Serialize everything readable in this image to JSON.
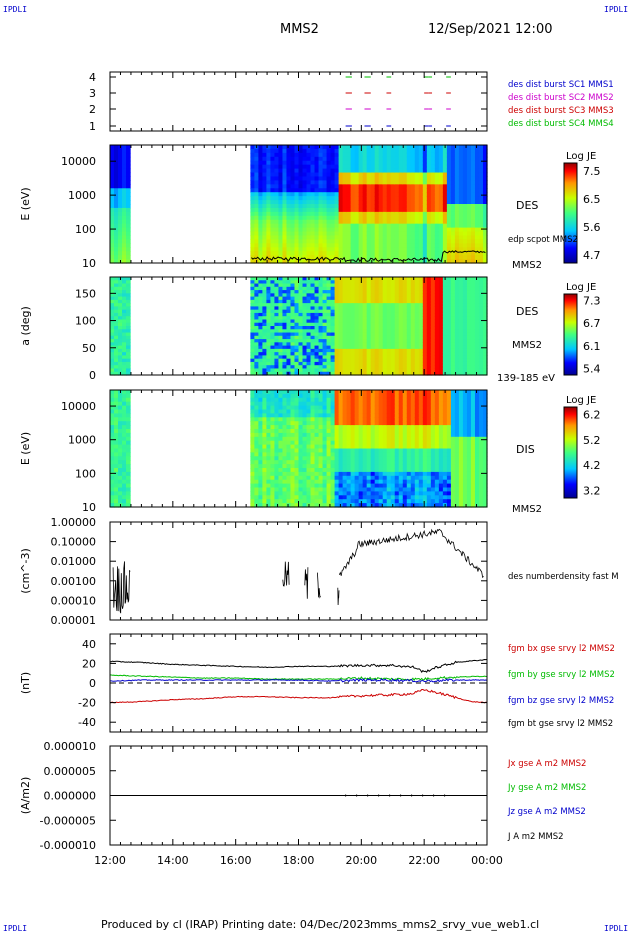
{
  "header": {
    "corner_label": "IPDLI",
    "spacecraft": "MMS2",
    "datetime": "12/Sep/2021 12:00"
  },
  "footer": {
    "produced_by": "Produced by cl (IRAP)",
    "printing_date": "Printing date: 04/Dec/2023",
    "filename": "mms_mms2_srvy_vue_web1.cl"
  },
  "colors": {
    "sc1": "#0000cc",
    "sc2": "#cc00cc",
    "sc3": "#cc0000",
    "sc4": "#00bb00",
    "bx": "#cc0000",
    "by": "#00bb00",
    "bz": "#0000cc",
    "bt": "#000000"
  },
  "chart_data": [
    {
      "type": "scatter",
      "panel": "burst",
      "ylim": [
        0.5,
        4.5
      ],
      "yticks": [
        "4",
        "3",
        "2",
        "1"
      ],
      "legend": [
        "des dist burst SC1 MMS1",
        "des dist burst SC2 MMS2",
        "des dist burst SC3 MMS3",
        "des dist burst SC4 MMS4"
      ],
      "segments_hours": [
        [
          19.5,
          19.7
        ],
        [
          20.1,
          20.3
        ],
        [
          20.8,
          20.95
        ],
        [
          22.0,
          22.15
        ],
        [
          22.15,
          22.25
        ],
        [
          22.7,
          22.85
        ]
      ]
    },
    {
      "type": "heatmap",
      "panel": "des-energy",
      "ylabel": "E (eV)",
      "yscale": "log",
      "ylim": [
        10,
        30000
      ],
      "yticks": [
        "10000",
        "1000",
        "100",
        "10"
      ],
      "right_label": "DES",
      "right_sublabel": "edp scpot MMS2",
      "right_bottom": "MMS2",
      "colorbar": {
        "title": "Log JE",
        "ticks": [
          "7.5",
          "6.5",
          "5.6",
          "4.7"
        ],
        "range": [
          4.7,
          7.5
        ]
      },
      "data_gap_hours": [
        12.7,
        16.5
      ]
    },
    {
      "type": "heatmap",
      "panel": "des-pitch",
      "ylabel": "a (deg)",
      "ylim": [
        0,
        180
      ],
      "yticks": [
        "150",
        "100",
        "50",
        "0"
      ],
      "right_label": "DES",
      "right_sublabel": "MMS2",
      "right_bottom": "139-185 eV",
      "colorbar": {
        "title": "Log JE",
        "ticks": [
          "7.3",
          "6.7",
          "6.1",
          "5.4"
        ],
        "range": [
          5.4,
          7.3
        ]
      },
      "data_gap_hours": [
        12.7,
        16.5
      ]
    },
    {
      "type": "heatmap",
      "panel": "dis-energy",
      "ylabel": "E (eV)",
      "yscale": "log",
      "ylim": [
        10,
        30000
      ],
      "yticks": [
        "10000",
        "1000",
        "100",
        "10"
      ],
      "right_label": "DIS",
      "right_bottom": "MMS2",
      "colorbar": {
        "title": "Log JE",
        "ticks": [
          "6.2",
          "5.2",
          "4.2",
          "3.2"
        ],
        "range": [
          3.2,
          6.2
        ]
      },
      "data_gap_hours": [
        12.7,
        16.5
      ]
    },
    {
      "type": "line",
      "panel": "density",
      "ylabel": "(cm^-3)",
      "yscale": "log",
      "ylim": [
        1e-05,
        1.0
      ],
      "yticks": [
        "1.00000",
        "0.10000",
        "0.01000",
        "0.00100",
        "0.00010",
        "0.00001"
      ],
      "legend": [
        "des numberdensity fast M"
      ]
    },
    {
      "type": "line",
      "panel": "magnetic-field",
      "ylabel": "(nT)",
      "ylim": [
        -50,
        50
      ],
      "yticks": [
        "40",
        "20",
        "0",
        "-20",
        "-40"
      ],
      "legend": [
        "fgm bx gse srvy l2 MMS2",
        "fgm by gse srvy l2 MMS2",
        "fgm bz gse srvy l2 MMS2",
        "fgm bt gse srvy l2 MMS2"
      ],
      "series": [
        {
          "name": "fgm bx gse srvy l2 MMS2",
          "x": [
            12,
            13,
            14,
            15,
            16,
            17,
            18,
            19,
            20,
            21,
            21.6,
            22,
            22.3,
            22.8,
            23.5,
            24
          ],
          "y": [
            -20,
            -19,
            -17,
            -16,
            -14,
            -14,
            -15,
            -15,
            -13,
            -12,
            -11,
            -7,
            -9,
            -13,
            -19,
            -20
          ]
        },
        {
          "name": "fgm by gse srvy l2 MMS2",
          "x": [
            12,
            13,
            14,
            15,
            16,
            17,
            18,
            19,
            20,
            21,
            22,
            22.3,
            23,
            24
          ],
          "y": [
            8,
            7,
            6,
            5,
            5,
            4,
            4,
            4,
            5,
            4,
            4,
            5,
            6,
            7
          ]
        },
        {
          "name": "fgm bz gse srvy l2 MMS2",
          "x": [
            12,
            13,
            14,
            15,
            16,
            17,
            18,
            19,
            20,
            21,
            22,
            23,
            24
          ],
          "y": [
            2,
            3,
            3,
            3,
            3,
            3,
            3,
            2,
            3,
            3,
            2,
            3,
            3
          ]
        },
        {
          "name": "fgm bt gse srvy l2 MMS2",
          "x": [
            12,
            13,
            14,
            15,
            16,
            17,
            18,
            19,
            20,
            21,
            21.7,
            22,
            22.3,
            23,
            24
          ],
          "y": [
            22,
            21,
            19,
            18,
            17,
            16,
            17,
            17,
            18,
            18,
            16,
            11,
            15,
            21,
            24
          ]
        }
      ]
    },
    {
      "type": "line",
      "panel": "current-density",
      "ylabel": "(A/m2)",
      "ylim": [
        -1e-05,
        1e-05
      ],
      "yticks": [
        "0.000010",
        "0.000005",
        "0.000000",
        "-0.000005",
        "-0.000010"
      ],
      "legend": [
        "Jx gse A m2 MMS2",
        "Jy gse A m2 MMS2",
        "Jz gse A m2 MMS2",
        "J A m2 MMS2"
      ],
      "series": [
        {
          "name": "J A m2 MMS2",
          "x": [
            12,
            18,
            24
          ],
          "y": [
            0,
            0,
            0
          ]
        }
      ]
    }
  ],
  "x_axis": {
    "range_hours": [
      12,
      24
    ],
    "ticks": [
      "12:00",
      "14:00",
      "16:00",
      "18:00",
      "20:00",
      "22:00",
      "00:00"
    ]
  }
}
